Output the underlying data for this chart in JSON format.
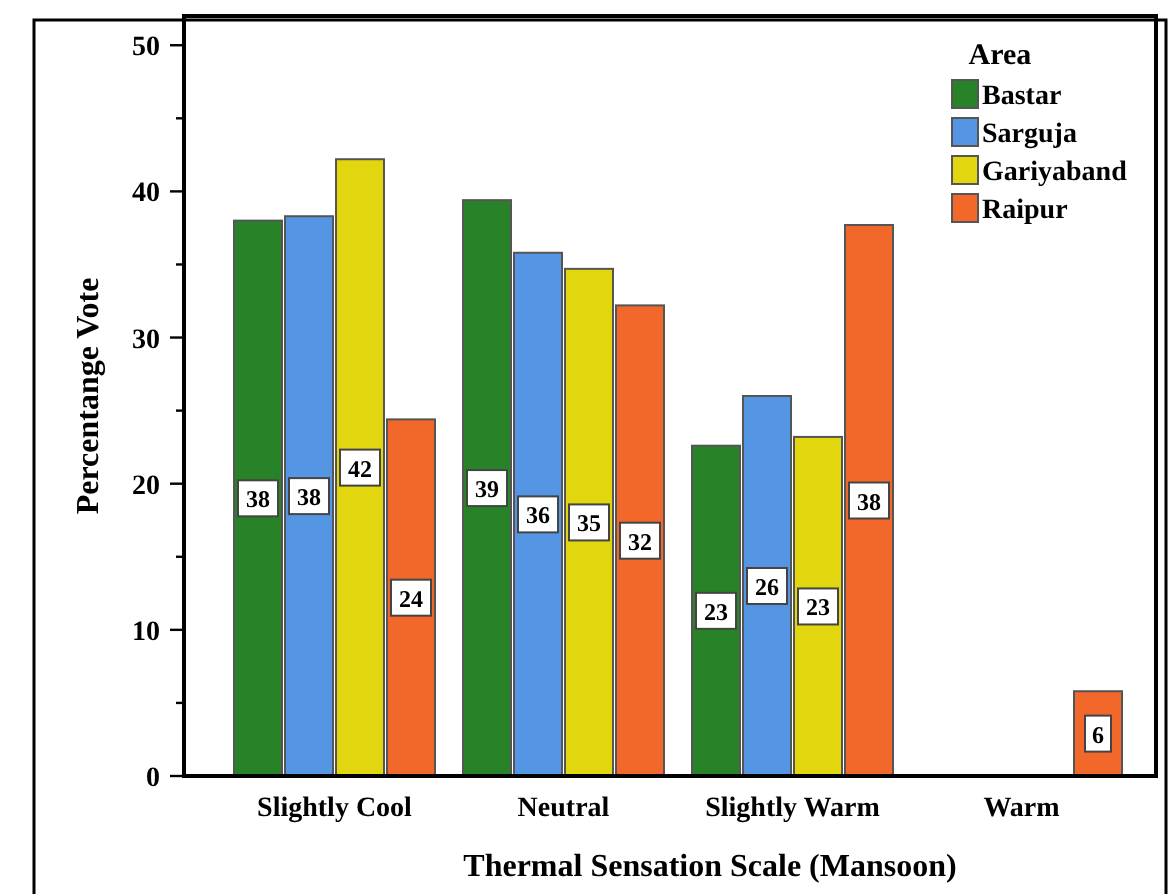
{
  "chart_data": {
    "type": "bar",
    "xlabel": "Thermal Sensation Scale (Mansoon)",
    "ylabel": "Percentange Vote",
    "legend_title": "Area",
    "categories": [
      "Slightly Cool",
      "Neutral",
      "Slightly Warm",
      "Warm"
    ],
    "series": [
      {
        "name": "Bastar",
        "color": "#288228",
        "values": [
          38.0,
          39.4,
          22.6,
          null
        ],
        "value_labels": [
          "38",
          "39",
          "23",
          null
        ]
      },
      {
        "name": "Sarguja",
        "color": "#5596e4",
        "values": [
          38.3,
          35.8,
          26.0,
          null
        ],
        "value_labels": [
          "38",
          "36",
          "26",
          null
        ]
      },
      {
        "name": "Gariyaband",
        "color": "#e2d60e",
        "values": [
          42.2,
          34.7,
          23.2,
          null
        ],
        "value_labels": [
          "42",
          "35",
          "23",
          null
        ]
      },
      {
        "name": "Raipur",
        "color": "#f2672a",
        "values": [
          24.4,
          32.2,
          37.7,
          5.8
        ],
        "value_labels": [
          "24",
          "32",
          "38",
          "6"
        ]
      }
    ],
    "ylim": [
      0,
      52
    ],
    "yticks": [
      0,
      {
        "value": 5,
        "label": null
      },
      10,
      {
        "value": 15,
        "label": null
      },
      20,
      {
        "value": 25,
        "label": null
      },
      30,
      {
        "value": 35,
        "label": null
      },
      40,
      {
        "value": 45,
        "label": null
      },
      50
    ],
    "legend": "top right",
    "grid": false
  }
}
